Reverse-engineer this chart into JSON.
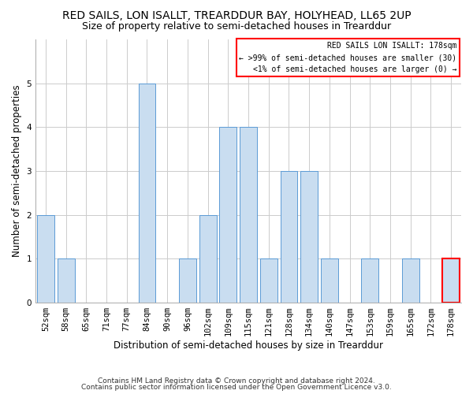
{
  "title": "RED SAILS, LON ISALLT, TREARDDUR BAY, HOLYHEAD, LL65 2UP",
  "subtitle": "Size of property relative to semi-detached houses in Trearddur",
  "xlabel": "Distribution of semi-detached houses by size in Trearddur",
  "ylabel": "Number of semi-detached properties",
  "categories": [
    "52sqm",
    "58sqm",
    "65sqm",
    "71sqm",
    "77sqm",
    "84sqm",
    "90sqm",
    "96sqm",
    "102sqm",
    "109sqm",
    "115sqm",
    "121sqm",
    "128sqm",
    "134sqm",
    "140sqm",
    "147sqm",
    "153sqm",
    "159sqm",
    "165sqm",
    "172sqm",
    "178sqm"
  ],
  "values": [
    2,
    1,
    0,
    0,
    0,
    5,
    0,
    1,
    2,
    4,
    4,
    1,
    3,
    3,
    1,
    0,
    1,
    0,
    1,
    0,
    1
  ],
  "bar_color": "#c9ddf0",
  "bar_edge_color": "#5b9bd5",
  "highlight_bar_index": 20,
  "highlight_bar_edge_color": "#ff0000",
  "legend_title": "RED SAILS LON ISALLT: 178sqm",
  "legend_line1": "← >99% of semi-detached houses are smaller (30)",
  "legend_line2": "<1% of semi-detached houses are larger (0) →",
  "legend_box_edge_color": "#ff0000",
  "footer_line1": "Contains HM Land Registry data © Crown copyright and database right 2024.",
  "footer_line2": "Contains public sector information licensed under the Open Government Licence v3.0.",
  "ylim": [
    0,
    6
  ],
  "yticks": [
    0,
    1,
    2,
    3,
    4,
    5,
    6
  ],
  "bg_color": "#ffffff",
  "grid_color": "#cccccc",
  "title_fontsize": 10,
  "subtitle_fontsize": 9,
  "axis_label_fontsize": 8.5,
  "tick_fontsize": 7.5,
  "legend_fontsize": 7,
  "footer_fontsize": 6.5
}
